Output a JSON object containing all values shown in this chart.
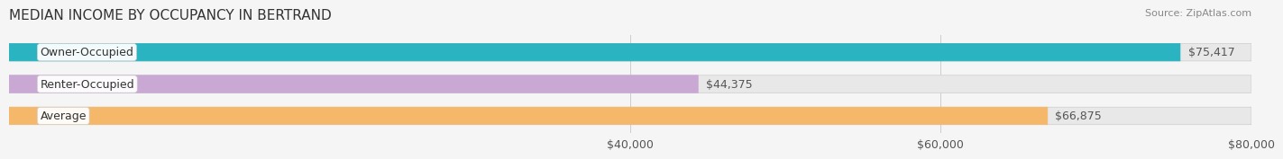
{
  "title": "MEDIAN INCOME BY OCCUPANCY IN BERTRAND",
  "source": "Source: ZipAtlas.com",
  "categories": [
    "Owner-Occupied",
    "Renter-Occupied",
    "Average"
  ],
  "values": [
    75417,
    44375,
    66875
  ],
  "bar_colors": [
    "#2ab3c0",
    "#c9a8d4",
    "#f5b86a"
  ],
  "bar_edge_colors": [
    "#2ab3c0",
    "#c9a8d4",
    "#f5b86a"
  ],
  "labels": [
    "$75,417",
    "$44,375",
    "$66,875"
  ],
  "xlim": [
    0,
    80000
  ],
  "xticks": [
    40000,
    60000,
    80000
  ],
  "xticklabels": [
    "$40,000",
    "$60,000",
    "$80,000"
  ],
  "background_color": "#f5f5f5",
  "bar_background_color": "#e8e8e8",
  "title_fontsize": 11,
  "source_fontsize": 8,
  "label_fontsize": 9,
  "tick_fontsize": 9,
  "bar_height": 0.55
}
